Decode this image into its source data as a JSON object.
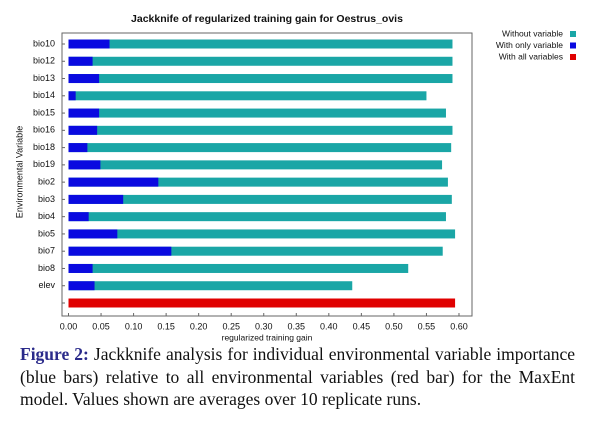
{
  "chart_data": {
    "type": "bar",
    "orientation": "horizontal",
    "overlay": true,
    "title": "Jackknife of regularized training gain for Oestrus_ovis",
    "x_label": "regularized training gain",
    "y_label": "Environmental Variable",
    "categories": [
      "bio10",
      "bio12",
      "bio13",
      "bio14",
      "bio15",
      "bio16",
      "bio18",
      "bio19",
      "bio2",
      "bio3",
      "bio4",
      "bio5",
      "bio7",
      "bio8",
      "elev",
      null
    ],
    "series": [
      {
        "name": "Without variable",
        "color": "#1aa6a6",
        "values": [
          0.59,
          0.59,
          0.59,
          0.55,
          0.58,
          0.59,
          0.588,
          0.574,
          0.583,
          0.589,
          0.58,
          0.594,
          0.575,
          0.522,
          0.436,
          null
        ]
      },
      {
        "name": "With only variable",
        "color": "#0a0ae0",
        "values": [
          0.063,
          0.037,
          0.047,
          0.011,
          0.047,
          0.044,
          0.029,
          0.049,
          0.138,
          0.084,
          0.031,
          0.075,
          0.158,
          0.037,
          0.04,
          null
        ]
      },
      {
        "name": "With all variables",
        "color": "#e00000",
        "values": [
          null,
          null,
          null,
          null,
          null,
          null,
          null,
          null,
          null,
          null,
          null,
          null,
          null,
          null,
          null,
          0.594
        ]
      }
    ],
    "xlim": [
      -0.01,
      0.62
    ],
    "xticks": [
      {
        "value": 0,
        "label": "0.00"
      },
      0.05,
      {
        "value": 0.1,
        "label": "0.10"
      },
      0.15,
      {
        "value": 0.2,
        "label": "0.20"
      },
      0.25,
      {
        "value": 0.3,
        "label": "0.30"
      },
      0.35,
      {
        "value": 0.4,
        "label": "0.40"
      },
      0.45,
      {
        "value": 0.5,
        "label": "0.50"
      },
      0.55,
      {
        "value": 0.6,
        "label": "0.60"
      }
    ],
    "grid": false,
    "legend": "top-right"
  },
  "caption": {
    "label": "Figure 2:",
    "text": "Jackknife analysis for individual environmental variable importance (blue bars) relative to all environmental variables (red bar) for the MaxEnt model. Values shown are averages over 10 replicate runs."
  }
}
